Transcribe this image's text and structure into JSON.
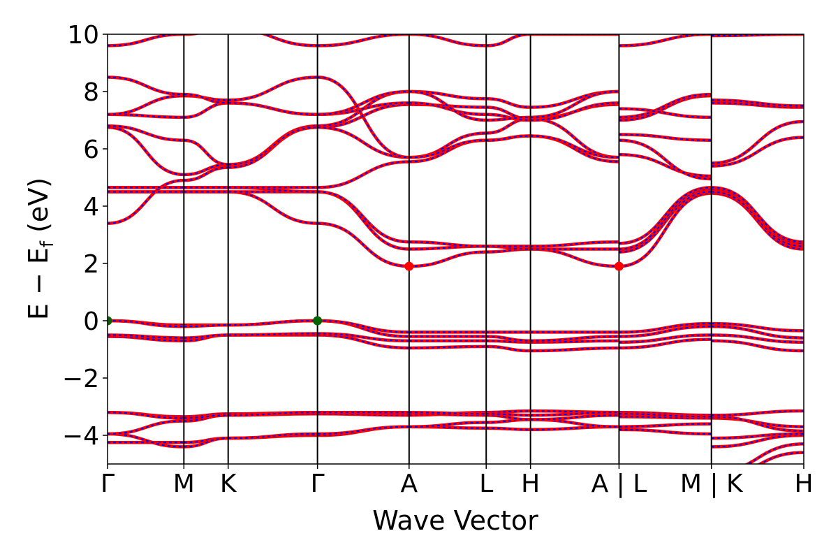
{
  "chart_data": {
    "type": "line",
    "xlabel": "Wave Vector",
    "ylabel": {
      "main": "E − E",
      "sub": "f",
      "unit": " (eV)"
    },
    "ylim": [
      -5,
      10
    ],
    "yticks": [
      -4,
      -2,
      0,
      2,
      4,
      6,
      8,
      10
    ],
    "ytick_labels": [
      "−4",
      "−2",
      "0",
      "2",
      "4",
      "6",
      "8",
      "10"
    ],
    "xlim": [
      0,
      9.12
    ],
    "kpoints": [
      {
        "label": "Γ",
        "x": 0
      },
      {
        "label": "M",
        "x": 1.0
      },
      {
        "label": "K",
        "x": 1.58
      },
      {
        "label": "Γ",
        "x": 2.75
      },
      {
        "label": "A",
        "x": 3.95
      },
      {
        "label": "L",
        "x": 4.96
      },
      {
        "label": "H",
        "x": 5.54
      },
      {
        "label": "A | L",
        "x": 6.7
      },
      {
        "label": "M | K",
        "x": 7.91
      },
      {
        "label": "H",
        "x": 9.12
      }
    ],
    "segments": [
      {
        "x0": 0.0,
        "x1": 1.0,
        "bands": [
          [
            -4.25,
            -4.25
          ],
          [
            -3.95,
            -4.4
          ],
          [
            -3.95,
            -3.5
          ],
          [
            -3.2,
            -3.35
          ],
          [
            -3.2,
            -3.4
          ],
          [
            -0.55,
            -0.7
          ],
          [
            -0.5,
            -0.6
          ],
          [
            0.0,
            -0.15
          ],
          [
            0.0,
            -0.2
          ],
          [
            3.4,
            4.9
          ],
          [
            4.5,
            4.5
          ],
          [
            4.5,
            4.5
          ],
          [
            4.65,
            4.65
          ],
          [
            4.65,
            4.65
          ],
          [
            6.75,
            5.1
          ],
          [
            6.8,
            6.3
          ],
          [
            7.2,
            7.1
          ],
          [
            7.2,
            7.85
          ],
          [
            8.5,
            7.9
          ],
          [
            9.6,
            10.0
          ]
        ]
      },
      {
        "x0": 1.0,
        "x1": 1.58,
        "bands": [
          [
            -4.25,
            -4.1
          ],
          [
            -4.4,
            -4.1
          ],
          [
            -3.5,
            -3.3
          ],
          [
            -3.35,
            -3.25
          ],
          [
            -3.4,
            -3.3
          ],
          [
            -0.7,
            -0.5
          ],
          [
            -0.6,
            -0.5
          ],
          [
            -0.15,
            -0.15
          ],
          [
            -0.2,
            -0.15
          ],
          [
            4.9,
            5.35
          ],
          [
            4.5,
            4.5
          ],
          [
            4.5,
            4.5
          ],
          [
            4.65,
            4.65
          ],
          [
            4.65,
            4.65
          ],
          [
            5.1,
            5.45
          ],
          [
            6.3,
            5.45
          ],
          [
            7.1,
            7.6
          ],
          [
            7.85,
            7.7
          ],
          [
            7.9,
            7.6
          ],
          [
            10.0,
            10.2
          ]
        ]
      },
      {
        "x0": 1.58,
        "x1": 2.75,
        "bands": [
          [
            -4.1,
            -4.0
          ],
          [
            -4.1,
            -3.95
          ],
          [
            -3.3,
            -3.25
          ],
          [
            -3.25,
            -3.2
          ],
          [
            -3.3,
            -3.2
          ],
          [
            -0.5,
            -0.5
          ],
          [
            -0.5,
            -0.45
          ],
          [
            -0.15,
            0.0
          ],
          [
            -0.15,
            0.0
          ],
          [
            5.35,
            6.75
          ],
          [
            4.5,
            3.4
          ],
          [
            4.5,
            4.5
          ],
          [
            4.65,
            4.5
          ],
          [
            4.65,
            4.65
          ],
          [
            5.45,
            6.8
          ],
          [
            5.45,
            6.75
          ],
          [
            7.6,
            7.2
          ],
          [
            7.7,
            8.5
          ],
          [
            7.6,
            7.2
          ],
          [
            10.2,
            9.6
          ]
        ]
      },
      {
        "x0": 2.75,
        "x1": 3.95,
        "bands": [
          [
            -4.0,
            -3.7
          ],
          [
            -3.95,
            -3.7
          ],
          [
            -3.25,
            -3.3
          ],
          [
            -3.2,
            -3.25
          ],
          [
            -3.2,
            -3.2
          ],
          [
            -0.5,
            -0.95
          ],
          [
            -0.45,
            -0.7
          ],
          [
            0.0,
            -0.55
          ],
          [
            0.0,
            -0.4
          ],
          [
            6.75,
            7.55
          ],
          [
            3.4,
            1.9
          ],
          [
            4.5,
            2.5
          ],
          [
            4.5,
            2.75
          ],
          [
            4.65,
            5.55
          ],
          [
            6.8,
            8.0
          ],
          [
            6.75,
            5.7
          ],
          [
            7.2,
            7.6
          ],
          [
            8.5,
            5.7
          ],
          [
            7.2,
            8.0
          ],
          [
            9.6,
            10.0
          ]
        ]
      },
      {
        "x0": 3.95,
        "x1": 4.96,
        "bands": [
          [
            -3.7,
            -3.75
          ],
          [
            -3.7,
            -3.55
          ],
          [
            -3.3,
            -3.2
          ],
          [
            -3.25,
            -3.3
          ],
          [
            -3.2,
            -3.25
          ],
          [
            -0.95,
            -0.9
          ],
          [
            -0.7,
            -0.7
          ],
          [
            -0.55,
            -0.55
          ],
          [
            -0.4,
            -0.4
          ],
          [
            7.55,
            7.45
          ],
          [
            1.9,
            2.4
          ],
          [
            2.5,
            2.6
          ],
          [
            2.75,
            2.6
          ],
          [
            5.55,
            6.3
          ],
          [
            8.0,
            7.75
          ],
          [
            5.7,
            6.55
          ],
          [
            7.6,
            7.2
          ],
          [
            5.7,
            6.3
          ],
          [
            8.0,
            7.0
          ],
          [
            10.0,
            9.6
          ]
        ]
      },
      {
        "x0": 4.96,
        "x1": 5.54,
        "bands": [
          [
            -3.75,
            -3.8
          ],
          [
            -3.55,
            -3.45
          ],
          [
            -3.2,
            -3.15
          ],
          [
            -3.3,
            -3.45
          ],
          [
            -3.25,
            -3.3
          ],
          [
            -0.9,
            -1.05
          ],
          [
            -0.7,
            -0.75
          ],
          [
            -0.55,
            -0.7
          ],
          [
            -0.4,
            -0.4
          ],
          [
            7.45,
            7.05
          ],
          [
            2.4,
            2.5
          ],
          [
            2.6,
            2.5
          ],
          [
            2.6,
            2.6
          ],
          [
            6.3,
            6.45
          ],
          [
            7.75,
            7.45
          ],
          [
            6.55,
            7.05
          ],
          [
            7.2,
            7.0
          ],
          [
            6.3,
            6.45
          ],
          [
            7.0,
            7.1
          ],
          [
            9.6,
            10.0
          ]
        ]
      },
      {
        "x0": 5.54,
        "x1": 6.7,
        "bands": [
          [
            -3.8,
            -3.7
          ],
          [
            -3.45,
            -3.7
          ],
          [
            -3.15,
            -3.2
          ],
          [
            -3.45,
            -3.3
          ],
          [
            -3.3,
            -3.2
          ],
          [
            -1.05,
            -0.95
          ],
          [
            -0.75,
            -0.7
          ],
          [
            -0.7,
            -0.55
          ],
          [
            -0.4,
            -0.4
          ],
          [
            7.05,
            7.55
          ],
          [
            2.5,
            1.9
          ],
          [
            2.5,
            2.5
          ],
          [
            2.6,
            2.75
          ],
          [
            6.45,
            5.55
          ],
          [
            7.45,
            8.0
          ],
          [
            7.05,
            5.7
          ],
          [
            7.0,
            7.6
          ],
          [
            6.45,
            5.7
          ],
          [
            7.1,
            8.0
          ],
          [
            10.0,
            10.0
          ]
        ]
      },
      {
        "x0": 6.7,
        "x1": 7.91,
        "bands": [
          [
            -3.7,
            -3.6
          ],
          [
            -3.8,
            -3.95
          ],
          [
            -3.2,
            -3.3
          ],
          [
            -3.35,
            -3.4
          ],
          [
            -3.25,
            -3.35
          ],
          [
            -0.95,
            -0.65
          ],
          [
            -0.75,
            -0.5
          ],
          [
            -0.55,
            -0.2
          ],
          [
            -0.4,
            -0.1
          ],
          [
            1.9,
            4.45
          ],
          [
            2.4,
            4.5
          ],
          [
            2.5,
            4.6
          ],
          [
            2.7,
            4.65
          ],
          [
            5.8,
            5.05
          ],
          [
            6.3,
            4.95
          ],
          [
            6.5,
            6.3
          ],
          [
            7.0,
            7.85
          ],
          [
            7.1,
            7.9
          ],
          [
            7.4,
            7.1
          ],
          [
            9.6,
            10.0
          ]
        ]
      },
      {
        "x0": 7.91,
        "x1": 9.12,
        "bands": [
          [
            -4.4,
            -4.0
          ],
          [
            -4.1,
            -3.95
          ],
          [
            -3.4,
            -3.7
          ],
          [
            -3.35,
            -3.85
          ],
          [
            -3.3,
            -3.15
          ],
          [
            -0.7,
            -1.05
          ],
          [
            -0.5,
            -0.75
          ],
          [
            -0.2,
            -0.6
          ],
          [
            -0.1,
            -0.35
          ],
          [
            4.45,
            2.5
          ],
          [
            4.5,
            2.6
          ],
          [
            4.6,
            2.7
          ],
          [
            4.65,
            2.75
          ],
          [
            5.4,
            6.4
          ],
          [
            5.5,
            6.95
          ],
          [
            7.6,
            7.45
          ],
          [
            7.7,
            7.5
          ],
          [
            9.95,
            10.0
          ],
          [
            -5.3,
            -4.3
          ],
          [
            -5.5,
            -4.6
          ]
        ]
      }
    ],
    "vbm_points": [
      {
        "x": 0,
        "y": 0
      },
      {
        "x": 2.75,
        "y": 0
      }
    ],
    "cbm_points": [
      {
        "x": 3.95,
        "y": 1.9
      },
      {
        "x": 6.7,
        "y": 1.9
      }
    ],
    "colors": {
      "band_spin_up": "#ff0000",
      "band_spin_down": "#0000ff",
      "vbm": "#006400",
      "cbm": "#ff0000",
      "frame": "#000000"
    }
  }
}
